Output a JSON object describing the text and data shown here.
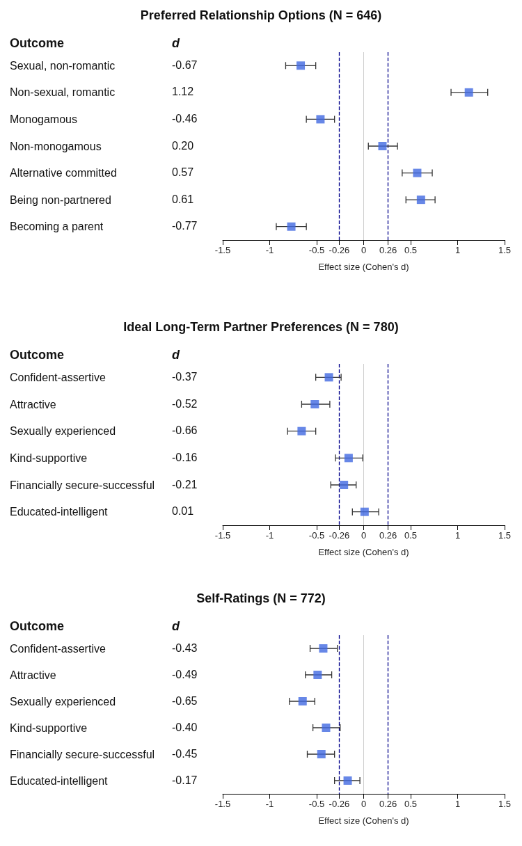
{
  "chart_data": [
    {
      "type": "scatter",
      "orientation": "horizontal",
      "title": "Preferred Relationship Options (N = 646)",
      "ylabel": "Outcome",
      "xlabel": "Effect size (Cohen's d)",
      "annotations": [
        "d"
      ],
      "categories": [
        "Sexual, non-romantic",
        "Non-sexual, romantic",
        "Monogamous",
        "Non-monogamous",
        "Alternative committed",
        "Being non-partnered",
        "Becoming a parent"
      ],
      "values": [
        -0.67,
        1.12,
        -0.46,
        0.2,
        0.57,
        0.61,
        -0.77
      ],
      "value_labels": [
        "-0.67",
        "1.12",
        "-0.46",
        "0.20",
        "0.57",
        "0.61",
        "-0.77"
      ],
      "errors": [
        [
          -0.83,
          -0.51
        ],
        [
          0.93,
          1.32
        ],
        [
          -0.61,
          -0.31
        ],
        [
          0.05,
          0.36
        ],
        [
          0.41,
          0.73
        ],
        [
          0.45,
          0.76
        ],
        [
          -0.93,
          -0.61
        ]
      ],
      "color": "#4169e1",
      "marker": "square",
      "xlim": [
        -1.5,
        1.5
      ],
      "xticks": [
        -1.5,
        -1,
        -0.5,
        -0.26,
        0,
        0.26,
        0.5,
        1,
        1.5
      ],
      "tick_labels": "x",
      "grid": false,
      "ref_lines": [
        {
          "axis": "x",
          "value": -0.26,
          "color": "#00008b",
          "line_style": "dashed"
        },
        {
          "axis": "x",
          "value": 0,
          "color": "#cccccc",
          "line_style": "solid"
        },
        {
          "axis": "x",
          "value": 0.26,
          "color": "#00008b",
          "line_style": "dashed"
        }
      ]
    },
    {
      "type": "scatter",
      "orientation": "horizontal",
      "title": "Ideal Long-Term Partner Preferences (N = 780)",
      "ylabel": "Outcome",
      "xlabel": "Effect size (Cohen's d)",
      "annotations": [
        "d"
      ],
      "categories": [
        "Confident-assertive",
        "Attractive",
        "Sexually experienced",
        "Kind-supportive",
        "Financially secure-successful",
        "Educated-intelligent"
      ],
      "values": [
        -0.37,
        -0.52,
        -0.66,
        -0.16,
        -0.21,
        0.01
      ],
      "value_labels": [
        "-0.37",
        "-0.52",
        "-0.66",
        "-0.16",
        "-0.21",
        "0.01"
      ],
      "errors": [
        [
          -0.51,
          -0.24
        ],
        [
          -0.66,
          -0.36
        ],
        [
          -0.81,
          -0.51
        ],
        [
          -0.3,
          -0.01
        ],
        [
          -0.35,
          -0.08
        ],
        [
          -0.12,
          0.16
        ]
      ],
      "color": "#4169e1",
      "marker": "square",
      "xlim": [
        -1.5,
        1.5
      ],
      "xticks": [
        -1.5,
        -1,
        -0.5,
        -0.26,
        0,
        0.26,
        0.5,
        1,
        1.5
      ],
      "tick_labels": "x",
      "grid": false,
      "ref_lines": [
        {
          "axis": "x",
          "value": -0.26,
          "color": "#00008b",
          "line_style": "dashed"
        },
        {
          "axis": "x",
          "value": 0,
          "color": "#cccccc",
          "line_style": "solid"
        },
        {
          "axis": "x",
          "value": 0.26,
          "color": "#00008b",
          "line_style": "dashed"
        }
      ]
    },
    {
      "type": "scatter",
      "orientation": "horizontal",
      "title": "Self-Ratings (N = 772)",
      "ylabel": "Outcome",
      "xlabel": "Effect size (Cohen's d)",
      "annotations": [
        "d"
      ],
      "categories": [
        "Confident-assertive",
        "Attractive",
        "Sexually experienced",
        "Kind-supportive",
        "Financially secure-successful",
        "Educated-intelligent"
      ],
      "values": [
        -0.43,
        -0.49,
        -0.65,
        -0.4,
        -0.45,
        -0.17
      ],
      "value_labels": [
        "-0.43",
        "-0.49",
        "-0.65",
        "-0.40",
        "-0.45",
        "-0.17"
      ],
      "errors": [
        [
          -0.57,
          -0.28
        ],
        [
          -0.62,
          -0.34
        ],
        [
          -0.79,
          -0.52
        ],
        [
          -0.54,
          -0.25
        ],
        [
          -0.6,
          -0.31
        ],
        [
          -0.31,
          -0.04
        ]
      ],
      "color": "#4169e1",
      "marker": "square",
      "xlim": [
        -1.5,
        1.5
      ],
      "xticks": [
        -1.5,
        -1,
        -0.5,
        -0.26,
        0,
        0.26,
        0.5,
        1,
        1.5
      ],
      "tick_labels": "x",
      "grid": false,
      "ref_lines": [
        {
          "axis": "x",
          "value": -0.26,
          "color": "#00008b",
          "line_style": "dashed"
        },
        {
          "axis": "x",
          "value": 0,
          "color": "#cccccc",
          "line_style": "solid"
        },
        {
          "axis": "x",
          "value": 0.26,
          "color": "#00008b",
          "line_style": "dashed"
        }
      ]
    }
  ]
}
